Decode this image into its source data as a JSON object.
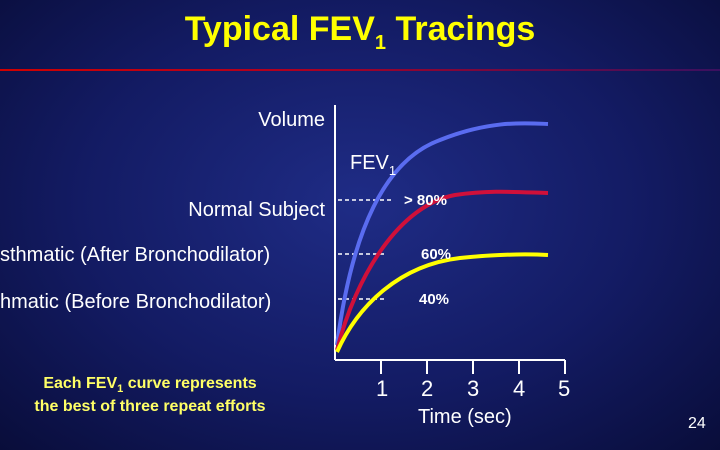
{
  "slide": {
    "title_main": "Typical FEV",
    "title_sub": "1",
    "title_tail": " Tracings",
    "page_number": "24"
  },
  "labels": {
    "volume": "Volume",
    "fev_main": "FEV",
    "fev_sub": "1",
    "normal": "Normal Subject",
    "after": "sthmatic (After Bronchodilator)",
    "before": "hmatic (Before Bronchodilator)",
    "pct_normal": "> 80%",
    "pct_after": "60%",
    "pct_before": "40%",
    "time": "Time (sec)"
  },
  "note": {
    "line1_a": "Each FEV",
    "line1_sub": "1",
    "line1_b": " curve represents",
    "line2": "the best of three repeat efforts"
  },
  "chart_data": {
    "type": "line",
    "x_ticks": [
      "1",
      "2",
      "3",
      "4",
      "5"
    ],
    "xlabel": "Time (sec)",
    "ylabel": "Volume",
    "series": [
      {
        "name": "Normal Subject",
        "color": "#5a6cf0",
        "value_at_1s": "> 80%"
      },
      {
        "name": "Asthmatic (After Bronchodilator)",
        "color": "#d0103a",
        "value_at_1s": "60%"
      },
      {
        "name": "Asthmatic (Before Bronchodilator)",
        "color": "#ffff00",
        "value_at_1s": "40%"
      }
    ]
  },
  "colors": {
    "title": "#ffff00",
    "note": "#ffff66",
    "normal": "#5a6cf0",
    "after": "#d0103a",
    "before": "#ffff00"
  }
}
